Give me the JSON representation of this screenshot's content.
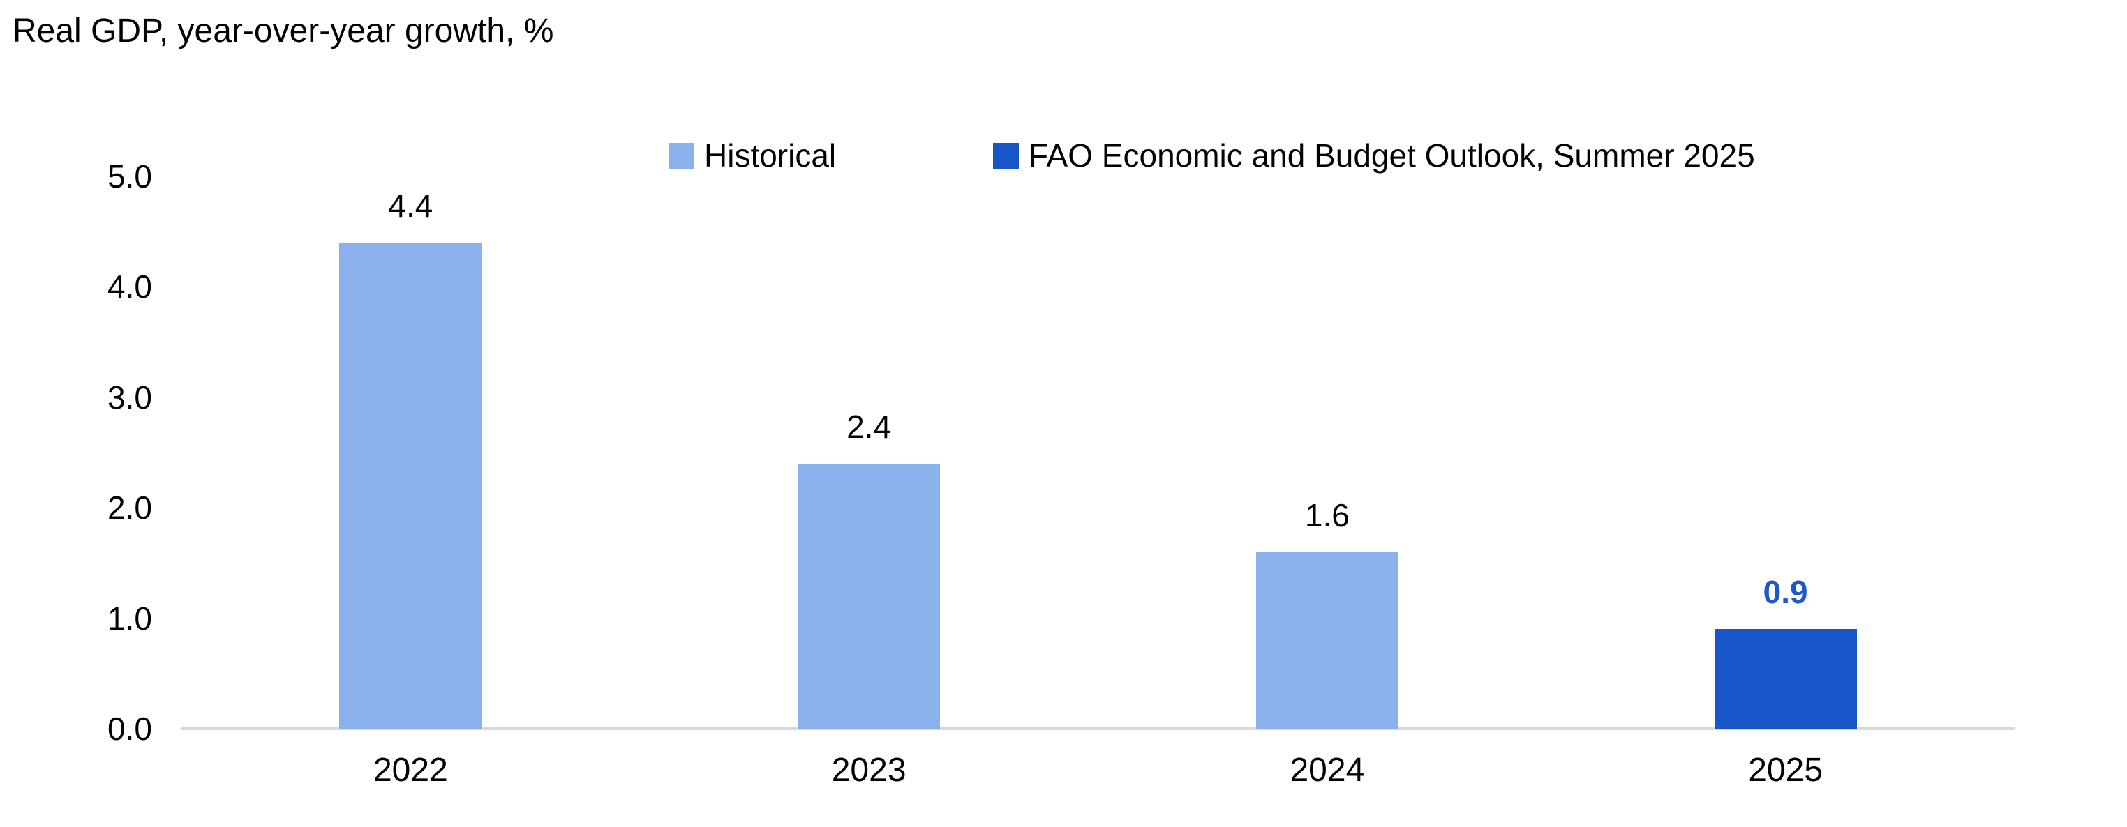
{
  "title": "Real GDP, year-over-year growth, %",
  "legend": {
    "position": "top-center",
    "items": [
      {
        "label": "Historical",
        "color": "#8BB1EC"
      },
      {
        "label": "FAO Economic and Budget Outlook, Summer 2025",
        "color": "#1656C8"
      }
    ]
  },
  "chart_data": {
    "type": "bar",
    "title": "Real GDP, year-over-year growth, %",
    "categories": [
      "2022",
      "2023",
      "2024",
      "2025"
    ],
    "series": [
      {
        "name": "Historical",
        "color": "#8BB1EC",
        "values": [
          4.4,
          2.4,
          1.6,
          null
        ]
      },
      {
        "name": "FAO Economic and Budget Outlook, Summer 2025",
        "color": "#1656C8",
        "values": [
          null,
          null,
          null,
          0.9
        ]
      }
    ],
    "bars": [
      {
        "category": "2022",
        "value": 4.4,
        "label": "4.4",
        "series": "Historical",
        "color": "#8BB1EC",
        "label_color": "#000000",
        "label_bold": false
      },
      {
        "category": "2023",
        "value": 2.4,
        "label": "2.4",
        "series": "Historical",
        "color": "#8BB1EC",
        "label_color": "#000000",
        "label_bold": false
      },
      {
        "category": "2024",
        "value": 1.6,
        "label": "1.6",
        "series": "Historical",
        "color": "#8BB1EC",
        "label_color": "#000000",
        "label_bold": false
      },
      {
        "category": "2025",
        "value": 0.9,
        "label": "0.9",
        "series": "FAO Economic and Budget Outlook, Summer 2025",
        "color": "#1656C8",
        "label_color": "#1C58C8",
        "label_bold": true
      }
    ],
    "xlabel": "",
    "ylabel": "",
    "ylim": [
      0,
      5
    ],
    "yticks": [
      {
        "value": 5,
        "label": "5.0"
      },
      {
        "value": 4,
        "label": "4.0"
      },
      {
        "value": 3,
        "label": "3.0"
      },
      {
        "value": 2,
        "label": "2.0"
      },
      {
        "value": 1,
        "label": "1.0"
      },
      {
        "value": 0,
        "label": "0.0"
      }
    ],
    "grid": false,
    "legend_position": "top-center"
  },
  "colors": {
    "historical": "#8BB1EC",
    "forecast": "#1656C8",
    "forecast_value_label": "#1C58C8",
    "axis_line": "#D9D9D9",
    "text": "#000000",
    "background": "#FFFFFF"
  }
}
